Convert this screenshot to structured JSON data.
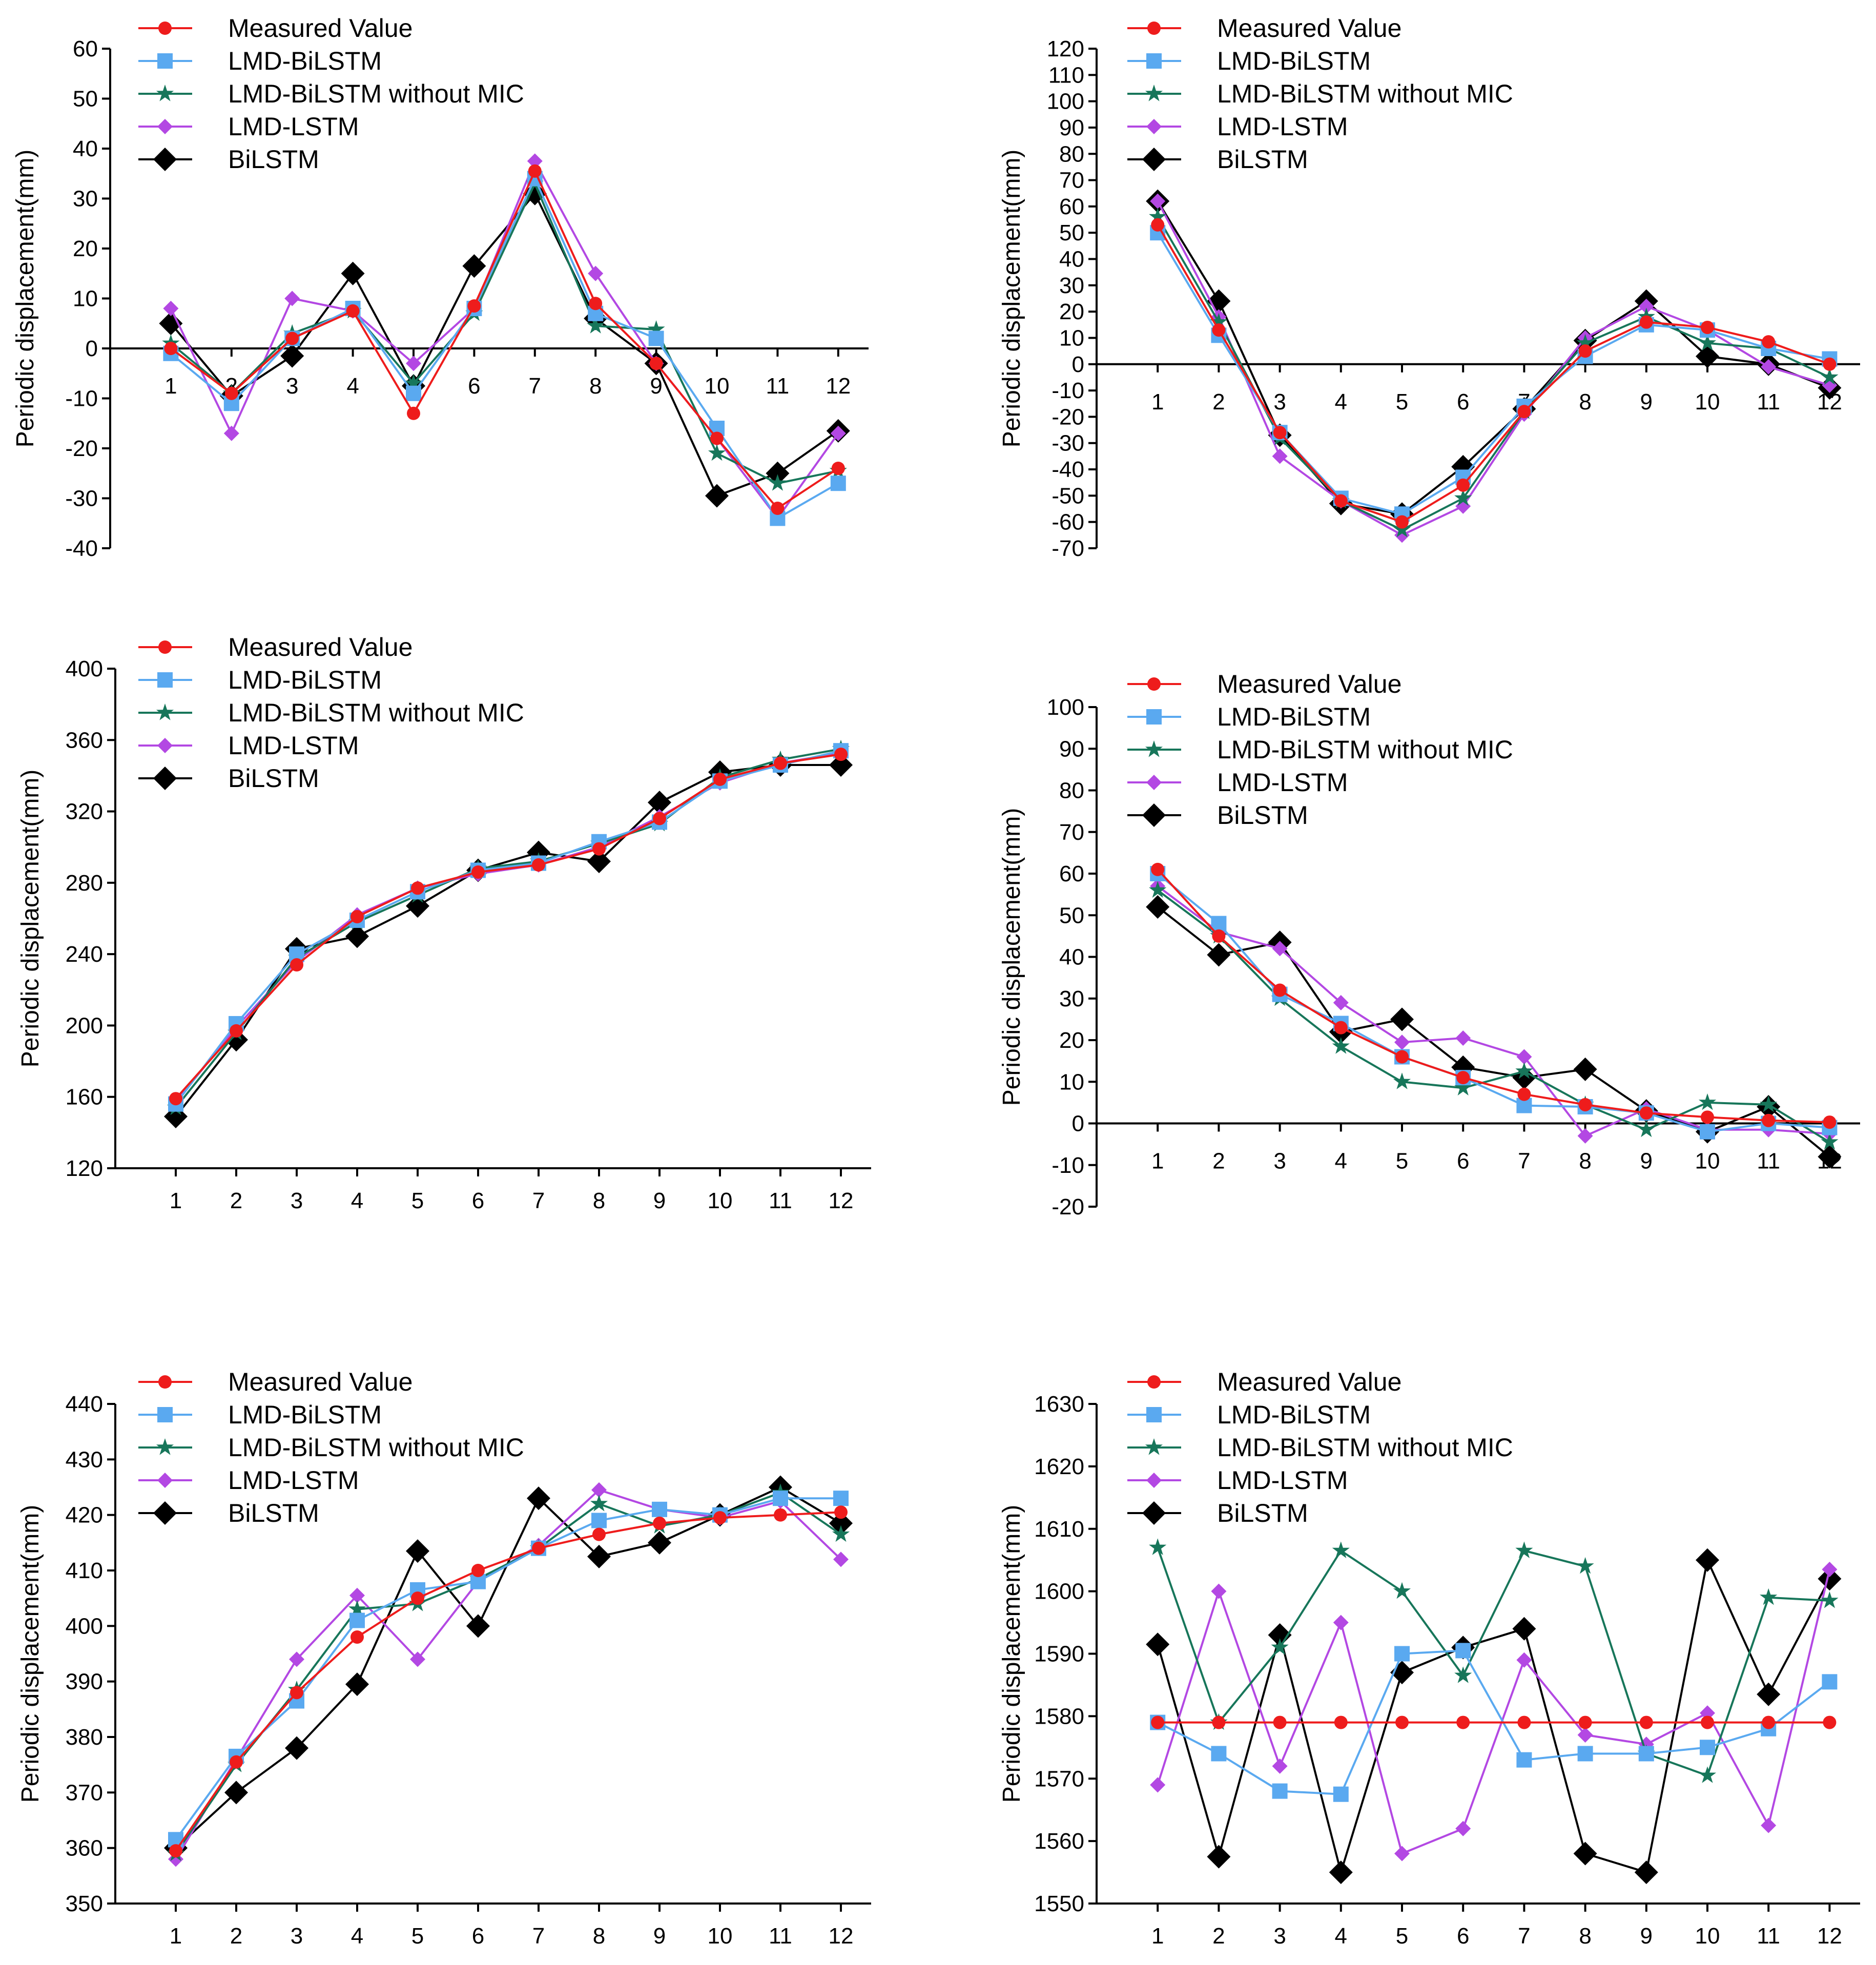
{
  "series_styles": [
    {
      "name": "Measured Value",
      "color": "#ee1c1c",
      "marker": "circle"
    },
    {
      "name": "LMD-BiLSTM",
      "color": "#5aa9f0",
      "marker": "square"
    },
    {
      "name": "LMD-BiLSTM without MIC",
      "color": "#17765a",
      "marker": "star"
    },
    {
      "name": "LMD-LSTM",
      "color": "#b348e3",
      "marker": "diamond"
    },
    {
      "name": "BiLSTM",
      "color": "#000000",
      "marker": "diamond-large"
    }
  ],
  "chart_data": [
    {
      "type": "line",
      "title": "",
      "xlabel": "",
      "ylabel": "Periodic displacement(mm)",
      "x": [
        1,
        2,
        3,
        4,
        5,
        6,
        7,
        8,
        9,
        10,
        11,
        12
      ],
      "ylim": [
        -40,
        60
      ],
      "ytick_step": 10,
      "grid": false,
      "legend": "top-left",
      "series": [
        {
          "name": "Measured Value",
          "values": [
            0,
            -9,
            2,
            7.5,
            -13,
            8.5,
            35.5,
            9,
            -3,
            -18,
            -32,
            -24
          ]
        },
        {
          "name": "LMD-BiLSTM",
          "values": [
            -1,
            -11,
            2,
            8,
            -9,
            8,
            34,
            7,
            2,
            -16,
            -34,
            -27
          ]
        },
        {
          "name": "LMD-BiLSTM without MIC",
          "values": [
            1,
            -9,
            3,
            7.5,
            -7,
            7,
            33,
            4.5,
            3.8,
            -21,
            -27,
            -24.5
          ]
        },
        {
          "name": "LMD-LSTM",
          "values": [
            8,
            -17,
            10,
            7.5,
            -3,
            8,
            37.5,
            15,
            -3,
            -18,
            -34,
            -17
          ]
        },
        {
          "name": "BiLSTM",
          "values": [
            5,
            -9.5,
            -1.5,
            15,
            -7.5,
            16.5,
            31,
            6,
            -3,
            -29.5,
            -25,
            -16.5
          ]
        }
      ]
    },
    {
      "type": "line",
      "title": "",
      "xlabel": "",
      "ylabel": "Periodic displacement(mm)",
      "x": [
        1,
        2,
        3,
        4,
        5,
        6,
        7,
        8,
        9,
        10,
        11,
        12
      ],
      "ylim": [
        -70,
        120
      ],
      "ytick_step": 10,
      "grid": false,
      "legend": "top-left",
      "series": [
        {
          "name": "Measured Value",
          "values": [
            53,
            13,
            -26,
            -52,
            -60,
            -46,
            -18,
            5,
            16,
            14,
            8.5,
            0
          ]
        },
        {
          "name": "LMD-BiLSTM",
          "values": [
            50,
            11,
            -26,
            -51,
            -57,
            -43,
            -16,
            3,
            15,
            13,
            6,
            2
          ]
        },
        {
          "name": "LMD-BiLSTM without MIC",
          "values": [
            56,
            16,
            -28,
            -52,
            -63,
            -51,
            -18,
            8,
            18,
            8,
            6,
            -5
          ]
        },
        {
          "name": "LMD-LSTM",
          "values": [
            62,
            18,
            -35,
            -52,
            -65,
            -54,
            -19,
            10,
            22,
            13,
            -1,
            -8
          ]
        },
        {
          "name": "BiLSTM",
          "values": [
            62,
            24,
            -27,
            -53,
            -57,
            -39,
            -17,
            9,
            24,
            3,
            0,
            -9
          ]
        }
      ]
    },
    {
      "type": "line",
      "title": "",
      "xlabel": "",
      "ylabel": "Periodic displacement(mm)",
      "x": [
        1,
        2,
        3,
        4,
        5,
        6,
        7,
        8,
        9,
        10,
        11,
        12
      ],
      "ylim": [
        120,
        400
      ],
      "ytick_step": 40,
      "grid": false,
      "legend": "top-left",
      "series": [
        {
          "name": "Measured Value",
          "values": [
            159,
            197,
            234,
            261,
            277,
            286,
            290,
            299,
            316,
            338,
            347,
            352
          ]
        },
        {
          "name": "LMD-BiLSTM",
          "values": [
            156,
            201,
            240,
            259,
            275,
            287,
            291,
            303,
            314,
            337,
            346,
            354
          ]
        },
        {
          "name": "LMD-BiLSTM without MIC",
          "values": [
            154,
            196,
            238,
            258,
            273,
            288,
            292,
            302,
            313,
            339,
            349,
            355
          ]
        },
        {
          "name": "LMD-LSTM",
          "values": [
            157,
            199,
            236,
            262,
            277,
            285,
            290,
            300,
            317,
            336,
            347,
            353
          ]
        },
        {
          "name": "BiLSTM",
          "values": [
            149,
            192,
            243,
            250,
            267,
            287,
            297,
            292,
            325,
            342,
            346,
            346
          ]
        }
      ]
    },
    {
      "type": "line",
      "title": "",
      "xlabel": "",
      "ylabel": "Periodic displacement(mm)",
      "x": [
        1,
        2,
        3,
        4,
        5,
        6,
        7,
        8,
        9,
        10,
        11,
        12
      ],
      "ylim": [
        -20,
        100
      ],
      "ytick_step": 10,
      "grid": false,
      "legend": "top-left",
      "series": [
        {
          "name": "Measured Value",
          "values": [
            61,
            45,
            32,
            23,
            16,
            11,
            7,
            4.5,
            2.5,
            1.5,
            0.7,
            0.3
          ]
        },
        {
          "name": "LMD-BiLSTM",
          "values": [
            60,
            48,
            31,
            24,
            16,
            11,
            4.3,
            4,
            2.5,
            -2,
            0,
            -1
          ]
        },
        {
          "name": "LMD-BiLSTM without MIC",
          "values": [
            56,
            45,
            30,
            18.5,
            10,
            8.5,
            12.5,
            4.5,
            -1.5,
            5,
            4.5,
            -4.5
          ]
        },
        {
          "name": "LMD-LSTM",
          "values": [
            57,
            46,
            42,
            29,
            19.5,
            20.5,
            16,
            -3,
            3.5,
            -1.5,
            -1.5,
            -2.5
          ]
        },
        {
          "name": "BiLSTM",
          "values": [
            52,
            40.5,
            43.5,
            22,
            25,
            13.5,
            11,
            13,
            3,
            -2,
            4,
            -8
          ]
        }
      ]
    },
    {
      "type": "line",
      "title": "",
      "xlabel": "",
      "ylabel": "Periodic displacement(mm)",
      "x": [
        1,
        2,
        3,
        4,
        5,
        6,
        7,
        8,
        9,
        10,
        11,
        12
      ],
      "ylim": [
        350,
        440
      ],
      "ytick_step": 10,
      "grid": false,
      "legend": "top-left",
      "series": [
        {
          "name": "Measured Value",
          "values": [
            359.5,
            375.5,
            388,
            398,
            405,
            410,
            414,
            416.5,
            418.5,
            419.5,
            420,
            420.5
          ]
        },
        {
          "name": "LMD-BiLSTM",
          "values": [
            361.5,
            376.5,
            386.5,
            401,
            406.5,
            408,
            414,
            419,
            421,
            420,
            423,
            423
          ]
        },
        {
          "name": "LMD-BiLSTM without MIC",
          "values": [
            359,
            375,
            388.5,
            403,
            404,
            408.5,
            414,
            422,
            418,
            420,
            424,
            416.5
          ]
        },
        {
          "name": "LMD-LSTM",
          "values": [
            358,
            376,
            394,
            405.5,
            394,
            408,
            414.5,
            424.5,
            421,
            419.5,
            422.5,
            412
          ]
        },
        {
          "name": "BiLSTM",
          "values": [
            360,
            370,
            378,
            389.5,
            413.5,
            400,
            423,
            412.5,
            415,
            420,
            425,
            418.5
          ]
        }
      ]
    },
    {
      "type": "line",
      "title": "",
      "xlabel": "",
      "ylabel": "Periodic displacement(mm)",
      "x": [
        1,
        2,
        3,
        4,
        5,
        6,
        7,
        8,
        9,
        10,
        11,
        12
      ],
      "ylim": [
        1550,
        1630
      ],
      "ytick_step": 10,
      "grid": false,
      "legend": "top-left",
      "series": [
        {
          "name": "Measured Value",
          "values": [
            1579,
            1579,
            1579,
            1579,
            1579,
            1579,
            1579,
            1579,
            1579,
            1579,
            1579,
            1579
          ]
        },
        {
          "name": "LMD-BiLSTM",
          "values": [
            1579,
            1574,
            1568,
            1567.5,
            1590,
            1590.5,
            1573,
            1574,
            1574,
            1575,
            1578,
            1585.5
          ]
        },
        {
          "name": "LMD-BiLSTM without MIC",
          "values": [
            1607,
            1579,
            1591,
            1606.5,
            1600,
            1586.5,
            1606.5,
            1604,
            1574,
            1570.5,
            1599,
            1598.5
          ]
        },
        {
          "name": "LMD-LSTM",
          "values": [
            1569,
            1600,
            1572,
            1595,
            1558,
            1562,
            1589,
            1577,
            1575.5,
            1580.5,
            1562.5,
            1603.5
          ]
        },
        {
          "name": "BiLSTM",
          "values": [
            1591.5,
            1557.5,
            1593,
            1555,
            1587,
            1591,
            1594,
            1558,
            1555,
            1605,
            1583.5,
            1602
          ]
        }
      ]
    }
  ]
}
